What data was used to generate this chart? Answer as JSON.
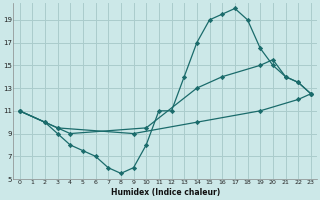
{
  "xlabel": "Humidex (Indice chaleur)",
  "bg_color": "#cce8e8",
  "grid_color": "#aacccc",
  "line_color": "#1a6b6b",
  "xlim": [
    -0.5,
    23.5
  ],
  "ylim": [
    5,
    20.5
  ],
  "xticks": [
    0,
    1,
    2,
    3,
    4,
    5,
    6,
    7,
    8,
    9,
    10,
    11,
    12,
    13,
    14,
    15,
    16,
    17,
    18,
    19,
    20,
    21,
    22,
    23
  ],
  "yticks": [
    5,
    7,
    9,
    11,
    13,
    15,
    17,
    19
  ],
  "lines": [
    {
      "x": [
        0,
        2,
        3,
        4,
        5,
        6,
        7,
        8,
        9,
        10,
        11,
        12,
        13,
        14,
        15,
        16,
        17,
        18,
        19,
        20,
        21,
        22,
        23
      ],
      "y": [
        11,
        10,
        9,
        8,
        7.5,
        7,
        6,
        5.5,
        6,
        8,
        11,
        11,
        14,
        17,
        19,
        19.5,
        20,
        19,
        16.5,
        15,
        14,
        13.5,
        12.5
      ]
    },
    {
      "x": [
        0,
        2,
        3,
        4,
        10,
        14,
        16,
        19,
        20,
        21,
        22,
        23
      ],
      "y": [
        11,
        10,
        9.5,
        9,
        9.5,
        13,
        14,
        15,
        15.5,
        14,
        13.5,
        12.5
      ]
    },
    {
      "x": [
        0,
        3,
        9,
        14,
        19,
        22,
        23
      ],
      "y": [
        11,
        9.5,
        9,
        10,
        11,
        12,
        12.5
      ]
    }
  ]
}
